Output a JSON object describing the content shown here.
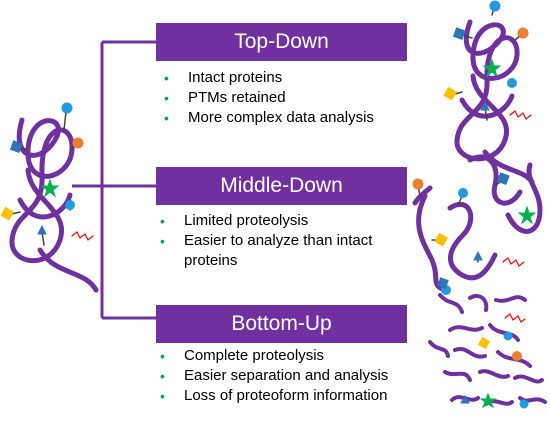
{
  "colors": {
    "strand": "#7030a0",
    "banner_bg": "#7030a0",
    "banner_text": "#ffffff",
    "bullet": "#00a650",
    "ptm_blue_circle": "#1f9bde",
    "ptm_blue_square": "#2e75b6",
    "ptm_orange_circle": "#ed7d31",
    "ptm_yellow_square": "#ffc000",
    "ptm_green_star": "#00b050",
    "ptm_red_zigzag": "#ff0000",
    "ptm_blue_triangle": "#2e75b6"
  },
  "sections": [
    {
      "id": "top-down",
      "title": "Top-Down",
      "bullets": [
        "Intact proteins",
        "PTMs retained",
        "More complex data analysis"
      ]
    },
    {
      "id": "middle-down",
      "title": "Middle-Down",
      "bullets": [
        "Limited proteolysis",
        "Easier to analyze than intact",
        "proteins"
      ]
    },
    {
      "id": "bottom-up",
      "title": "Bottom-Up",
      "bullets": [
        "Complete proteolysis",
        "Easier separation and analysis",
        "Loss of proteoform information"
      ]
    }
  ],
  "bullet_symbol": "•",
  "icons": {
    "intact_protein": "intact-protein-icon",
    "partially_digested": "partially-digested-protein-icon",
    "fully_digested": "peptide-fragments-icon"
  }
}
